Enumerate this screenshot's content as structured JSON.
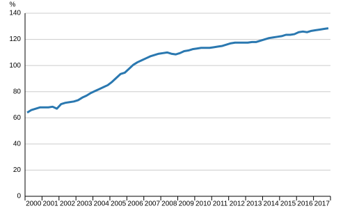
{
  "chart_data": {
    "type": "line",
    "y_label": "%",
    "categories": [
      "2000",
      null,
      null,
      null,
      "2001",
      null,
      null,
      null,
      "2002",
      null,
      null,
      null,
      "2003",
      null,
      null,
      null,
      "2004",
      null,
      null,
      null,
      "2005",
      null,
      null,
      null,
      "2006",
      null,
      null,
      null,
      "2007",
      null,
      null,
      null,
      "2008",
      null,
      null,
      null,
      "2009",
      null,
      null,
      null,
      "2010",
      null,
      null,
      null,
      "2011",
      null,
      null,
      null,
      "2012",
      null,
      null,
      null,
      "2013",
      null,
      null,
      null,
      "2014",
      null,
      null,
      null,
      "2015",
      null,
      null,
      null,
      "2016",
      null,
      null,
      null,
      "2017",
      null,
      null,
      null
    ],
    "values": [
      64,
      66,
      67,
      68,
      68,
      68,
      68.5,
      67,
      70.5,
      71.5,
      72,
      72.5,
      73.5,
      75.5,
      77,
      79,
      80.5,
      82,
      83.5,
      85,
      87.5,
      90.5,
      93.5,
      94.5,
      97.5,
      100.5,
      102.5,
      104,
      105.5,
      107,
      108,
      109,
      109.5,
      110,
      109,
      108.5,
      109.5,
      111,
      111.5,
      112.5,
      113,
      113.5,
      113.5,
      113.5,
      114,
      114.5,
      115,
      116,
      117,
      117.5,
      117.5,
      117.5,
      117.5,
      118,
      118,
      119,
      120,
      121,
      121.5,
      122,
      122.5,
      123.5,
      123.5,
      124,
      125.5,
      126,
      125.5,
      126.5,
      127,
      127.5,
      128,
      128.5
    ],
    "color": "#2a78b0",
    "ylim": [
      0,
      140
    ],
    "yticks": [
      0,
      20,
      40,
      60,
      80,
      100,
      120,
      140
    ],
    "grid": true
  }
}
